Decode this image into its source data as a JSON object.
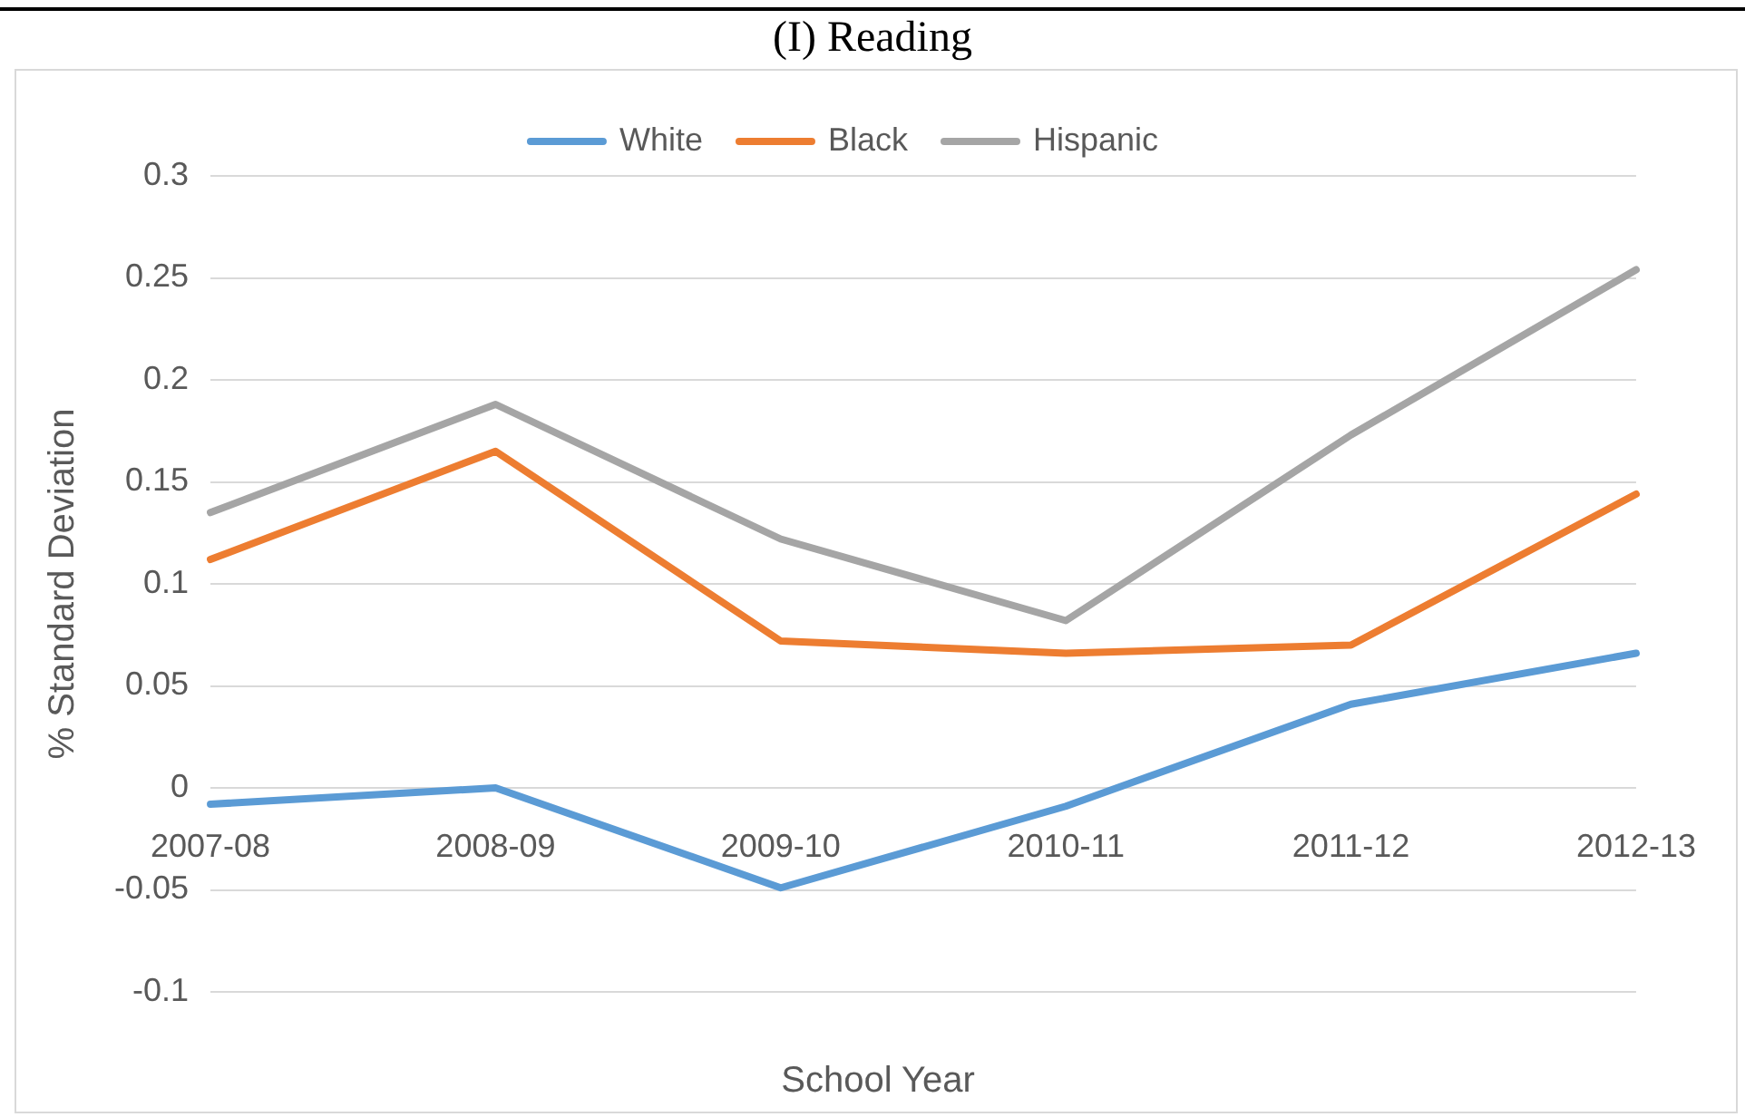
{
  "chart_data": {
    "type": "line",
    "title": "(I) Reading",
    "xlabel": "School Year",
    "ylabel": "% Standard Deviation",
    "categories": [
      "2007-08",
      "2008-09",
      "2009-10",
      "2010-11",
      "2011-12",
      "2012-13"
    ],
    "series": [
      {
        "name": "White",
        "color": "#5b9bd5",
        "values": [
          -0.008,
          0.0,
          -0.049,
          -0.009,
          0.041,
          0.066
        ]
      },
      {
        "name": "Black",
        "color": "#ed7d31",
        "values": [
          0.112,
          0.165,
          0.072,
          0.066,
          0.07,
          0.144
        ]
      },
      {
        "name": "Hispanic",
        "color": "#a5a5a5",
        "values": [
          0.135,
          0.188,
          0.122,
          0.082,
          0.173,
          0.254
        ]
      }
    ],
    "ylim": [
      -0.1,
      0.3
    ],
    "yticks": [
      -0.1,
      -0.05,
      0,
      0.05,
      0.1,
      0.15,
      0.2,
      0.25,
      0.3
    ],
    "grid": "y",
    "legend": "top",
    "marker": "none",
    "line_style": "solid"
  }
}
